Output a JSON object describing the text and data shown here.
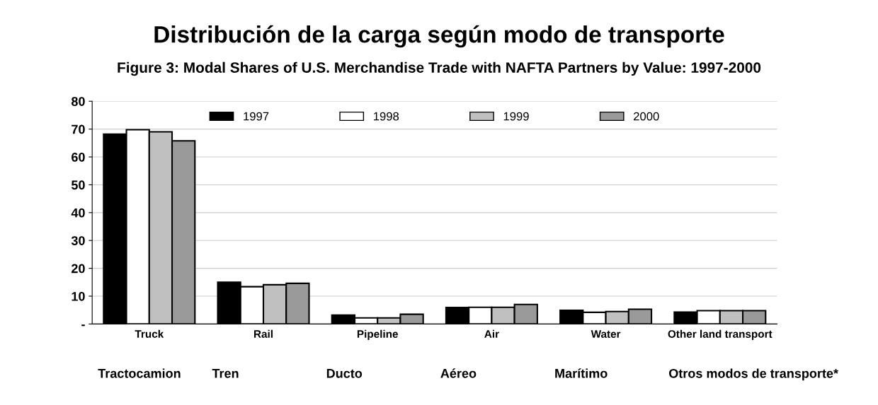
{
  "chart_data": {
    "type": "bar",
    "title": "Distribución de la carga según modo de transporte",
    "subtitle": "Figure 3: Modal Shares of U.S. Merchandise Trade with NAFTA Partners by Value: 1997-2000",
    "categories": [
      "Truck",
      "Rail",
      "Pipeline",
      "Air",
      "Water",
      "Other land transport"
    ],
    "series": [
      {
        "name": "1997",
        "color": "#000000",
        "values": [
          68.2,
          15.0,
          3.2,
          5.9,
          4.9,
          4.3
        ]
      },
      {
        "name": "1998",
        "color": "#ffffff",
        "values": [
          69.8,
          13.4,
          2.2,
          6.0,
          4.2,
          4.8
        ]
      },
      {
        "name": "1999",
        "color": "#c0c0c0",
        "values": [
          69.0,
          14.1,
          2.2,
          6.0,
          4.5,
          4.8
        ]
      },
      {
        "name": "2000",
        "color": "#9a9a9a",
        "values": [
          65.8,
          14.6,
          3.5,
          7.0,
          5.3,
          4.8
        ]
      }
    ],
    "annotations": [
      "Tractocamion",
      "Tren",
      "Ducto",
      "Aéreo",
      "Marítimo",
      "Otros modos de transporte*"
    ],
    "ylim": [
      0,
      80
    ],
    "yticks": [
      {
        "value": 0,
        "label": "-"
      },
      10,
      20,
      30,
      40,
      50,
      60,
      70,
      80
    ],
    "grid": "y",
    "legend": "top"
  }
}
